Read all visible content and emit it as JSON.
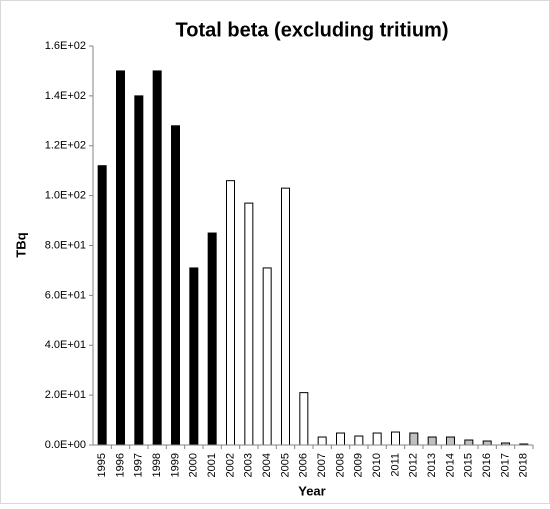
{
  "chart_data": {
    "type": "bar",
    "title": "Total beta (excluding tritium)",
    "x_label": "Year",
    "y_label": "TBq",
    "categories": [
      "1995",
      "1996",
      "1997",
      "1998",
      "1999",
      "2000",
      "2001",
      "2002",
      "2003",
      "2004",
      "2005",
      "2006",
      "2007",
      "2008",
      "2009",
      "2010",
      "2011",
      "2012",
      "2013",
      "2014",
      "2015",
      "2016",
      "2017",
      "2018"
    ],
    "values": [
      112,
      150,
      140,
      150,
      128,
      71,
      85,
      106,
      97,
      71,
      103,
      21,
      3.2,
      4.8,
      3.6,
      4.8,
      5.2,
      4.8,
      3.2,
      3.2,
      2,
      1.6,
      0.8,
      0.4
    ],
    "colors": [
      "#000000",
      "#000000",
      "#000000",
      "#000000",
      "#000000",
      "#000000",
      "#000000",
      "#ffffff",
      "#ffffff",
      "#ffffff",
      "#ffffff",
      "#ffffff",
      "#ffffff",
      "#ffffff",
      "#ffffff",
      "#ffffff",
      "#ffffff",
      "#c0c0c0",
      "#c0c0c0",
      "#c0c0c0",
      "#c0c0c0",
      "#c0c0c0",
      "#c0c0c0",
      "#c0c0c0"
    ],
    "ylim": [
      0,
      160
    ],
    "yticks": [
      {
        "value": 0,
        "label": "0.0E+00"
      },
      {
        "value": 20,
        "label": "2.0E+01"
      },
      {
        "value": 40,
        "label": "4.0E+01"
      },
      {
        "value": 60,
        "label": "6.0E+01"
      },
      {
        "value": 80,
        "label": "8.0E+01"
      },
      {
        "value": 100,
        "label": "1.0E+02"
      },
      {
        "value": 120,
        "label": "1.2E+02"
      },
      {
        "value": 140,
        "label": "1.4E+02"
      },
      {
        "value": 160,
        "label": "1.6E+02"
      }
    ],
    "grid": false
  }
}
